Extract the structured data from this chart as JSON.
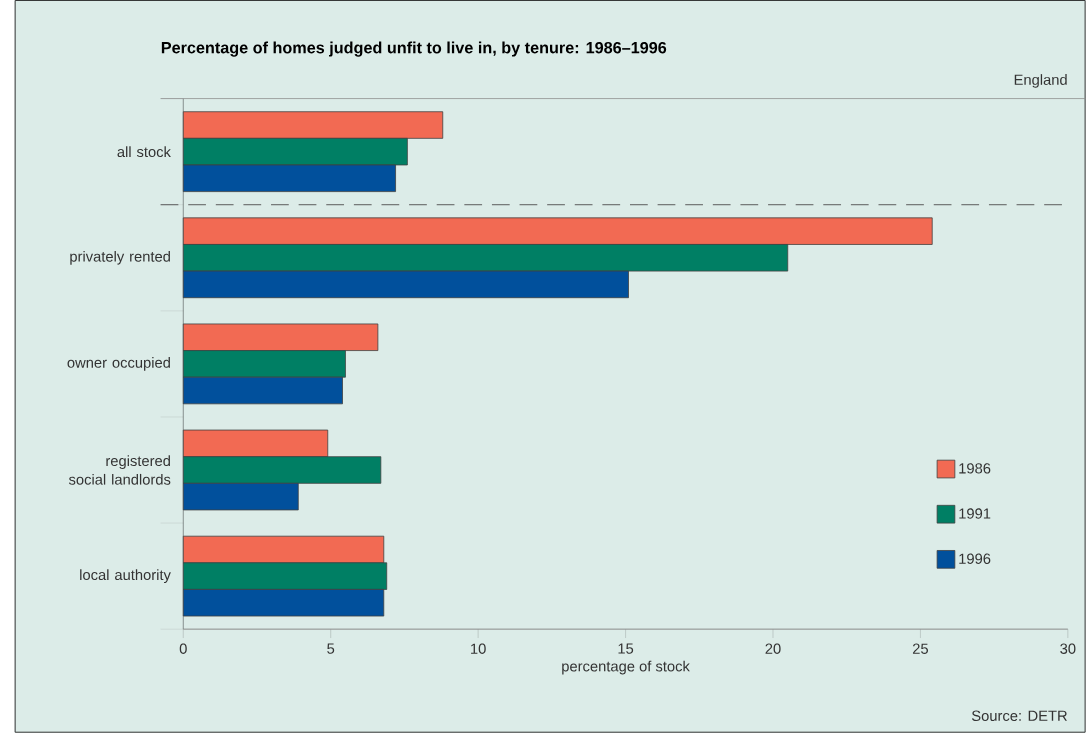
{
  "chart_data": {
    "type": "bar",
    "orientation": "horizontal",
    "title": "Percentage of homes judged unfit to live in, by tenure: 1986–1996",
    "xlabel": "percentage of stock",
    "categories": [
      "all stock",
      "privately rented",
      "owner occupied",
      "registered social landlords",
      "local authority"
    ],
    "series": [
      {
        "name": "1986",
        "color": "#f26a53",
        "values": [
          8.8,
          25.4,
          6.6,
          4.9,
          6.8
        ]
      },
      {
        "name": "1991",
        "color": "#007f64",
        "values": [
          7.6,
          20.5,
          5.5,
          6.7,
          6.9
        ]
      },
      {
        "name": "1996",
        "color": "#01509c",
        "values": [
          7.2,
          15.1,
          5.4,
          3.9,
          6.8
        ]
      }
    ],
    "xlim": [
      0,
      30
    ],
    "xticks": [
      0,
      5,
      10,
      15,
      20,
      25,
      30
    ],
    "annotations": [
      "England",
      "Source: DETR"
    ],
    "legend": "bottom right",
    "grid": false
  }
}
